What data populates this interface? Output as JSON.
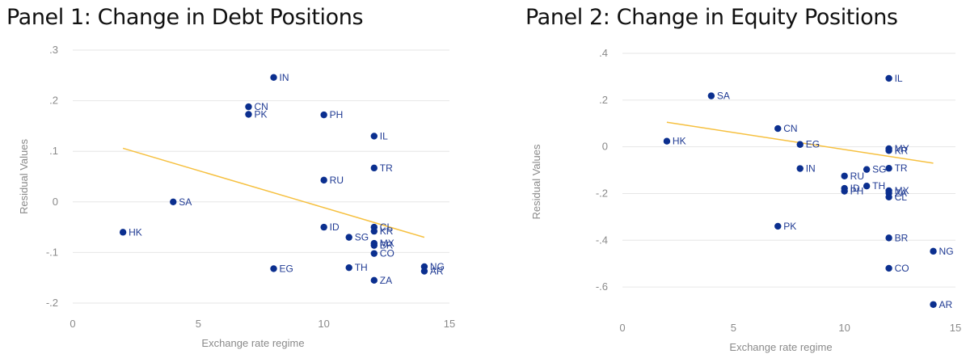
{
  "chart_data": [
    {
      "type": "scatter",
      "title": "Panel 1: Change in Debt Positions",
      "xlabel": "Exchange rate regime",
      "ylabel": "Residual Values",
      "xlim": [
        0,
        15
      ],
      "ylim": [
        -0.2,
        0.3
      ],
      "xticks": [
        0,
        5,
        10,
        15
      ],
      "xtick_labels": [
        "0",
        "5",
        "10",
        "15"
      ],
      "yticks": [
        0.3,
        0.2,
        0.1,
        0,
        -0.1,
        -0.2
      ],
      "ytick_labels": [
        ".3",
        ".2",
        ".1",
        "0",
        "-.1",
        "-.2"
      ],
      "grid": true,
      "point_color": "#0b2f8f",
      "fit_color": "#f6c03f",
      "fit_line": {
        "x": [
          2,
          14
        ],
        "y": [
          0.106,
          -0.07
        ]
      },
      "points": [
        {
          "label": "IN",
          "x": 8,
          "y": 0.246
        },
        {
          "label": "CN",
          "x": 7,
          "y": 0.188
        },
        {
          "label": "PK",
          "x": 7,
          "y": 0.173
        },
        {
          "label": "PH",
          "x": 10,
          "y": 0.172
        },
        {
          "label": "IL",
          "x": 12,
          "y": 0.13
        },
        {
          "label": "TR",
          "x": 12,
          "y": 0.067
        },
        {
          "label": "RU",
          "x": 10,
          "y": 0.043
        },
        {
          "label": "SA",
          "x": 4,
          "y": 0.0
        },
        {
          "label": "HK",
          "x": 2,
          "y": -0.06
        },
        {
          "label": "ID",
          "x": 10,
          "y": -0.05
        },
        {
          "label": "CL",
          "x": 12,
          "y": -0.05
        },
        {
          "label": "KR",
          "x": 12,
          "y": -0.058
        },
        {
          "label": "SG",
          "x": 11,
          "y": -0.07
        },
        {
          "label": "MX",
          "x": 12,
          "y": -0.082
        },
        {
          "label": "BR",
          "x": 12,
          "y": -0.086
        },
        {
          "label": "CO",
          "x": 12,
          "y": -0.102
        },
        {
          "label": "EG",
          "x": 8,
          "y": -0.132
        },
        {
          "label": "TH",
          "x": 11,
          "y": -0.13
        },
        {
          "label": "NG",
          "x": 14,
          "y": -0.128
        },
        {
          "label": "AR",
          "x": 14,
          "y": -0.137
        },
        {
          "label": "ZA",
          "x": 12,
          "y": -0.155
        }
      ]
    },
    {
      "type": "scatter",
      "title": "Panel 2: Change in Equity Positions",
      "xlabel": "Exchange rate regime",
      "ylabel": "Residual Values",
      "xlim": [
        0,
        15
      ],
      "ylim": [
        -0.7,
        0.4
      ],
      "xticks": [
        0,
        5,
        10,
        15
      ],
      "xtick_labels": [
        "0",
        "5",
        "10",
        "15"
      ],
      "yticks": [
        0.4,
        0.2,
        0,
        -0.2,
        -0.4,
        -0.6
      ],
      "ytick_labels": [
        ".4",
        ".2",
        "0",
        "-.2",
        "-.4",
        "-.6"
      ],
      "grid": true,
      "point_color": "#0b2f8f",
      "fit_color": "#f6c03f",
      "fit_line": {
        "x": [
          2,
          14
        ],
        "y": [
          0.105,
          -0.07
        ]
      },
      "points": [
        {
          "label": "IL",
          "x": 12,
          "y": 0.293
        },
        {
          "label": "SA",
          "x": 4,
          "y": 0.218
        },
        {
          "label": "CN",
          "x": 7,
          "y": 0.078
        },
        {
          "label": "HK",
          "x": 2,
          "y": 0.024
        },
        {
          "label": "EG",
          "x": 8,
          "y": 0.01
        },
        {
          "label": "MY",
          "x": 12,
          "y": -0.008
        },
        {
          "label": "KR",
          "x": 12,
          "y": -0.016
        },
        {
          "label": "IN",
          "x": 8,
          "y": -0.093
        },
        {
          "label": "SG",
          "x": 11,
          "y": -0.097
        },
        {
          "label": "TR",
          "x": 12,
          "y": -0.092
        },
        {
          "label": "RU",
          "x": 10,
          "y": -0.125
        },
        {
          "label": "TH",
          "x": 11,
          "y": -0.168
        },
        {
          "label": "ID",
          "x": 10,
          "y": -0.178
        },
        {
          "label": "PH",
          "x": 10,
          "y": -0.19
        },
        {
          "label": "MX",
          "x": 12,
          "y": -0.188
        },
        {
          "label": "ZA",
          "x": 12,
          "y": -0.198
        },
        {
          "label": "CL",
          "x": 12,
          "y": -0.215
        },
        {
          "label": "PK",
          "x": 7,
          "y": -0.34
        },
        {
          "label": "BR",
          "x": 12,
          "y": -0.39
        },
        {
          "label": "NG",
          "x": 14,
          "y": -0.447
        },
        {
          "label": "CO",
          "x": 12,
          "y": -0.52
        },
        {
          "label": "AR",
          "x": 14,
          "y": -0.675
        }
      ]
    }
  ]
}
